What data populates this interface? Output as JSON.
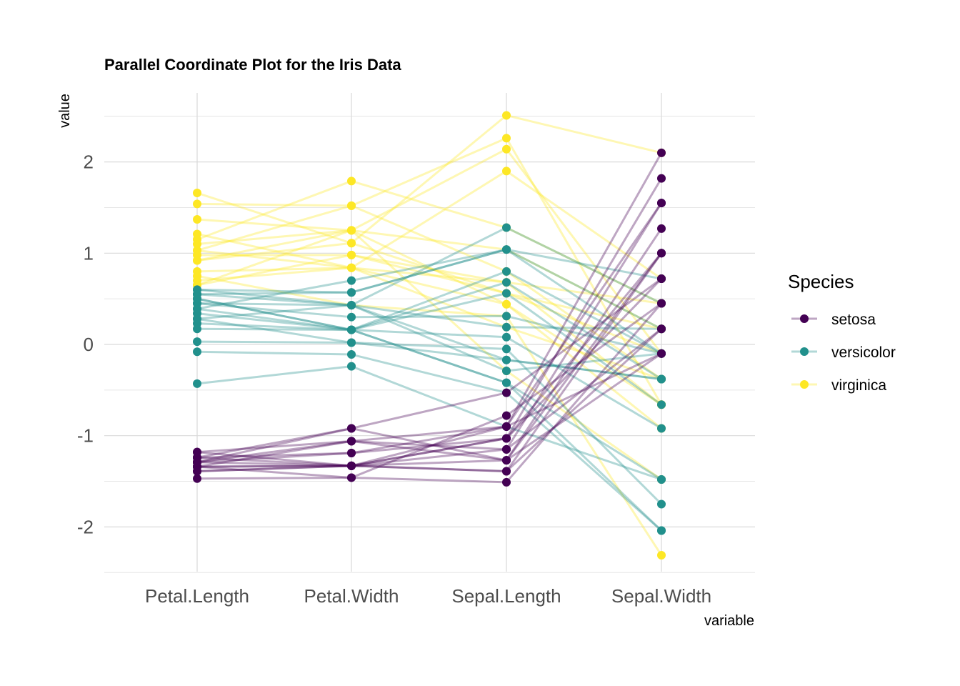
{
  "chart_data": {
    "type": "line",
    "title": "Parallel Coordinate Plot for the Iris Data",
    "xlabel": "variable",
    "ylabel": "value",
    "categories": [
      "Petal.Length",
      "Petal.Width",
      "Sepal.Length",
      "Sepal.Width"
    ],
    "ylim": [
      -2.5,
      2.6
    ],
    "yticks": [
      -2,
      -1,
      0,
      1,
      2
    ],
    "ytick_labels": [
      "-2",
      "-1",
      "0",
      "1",
      "2"
    ],
    "grid": true,
    "legend": {
      "title": "Species",
      "placement": "right",
      "entries": [
        {
          "name": "setosa",
          "color": "#440154"
        },
        {
          "name": "versicolor",
          "color": "#21908C"
        },
        {
          "name": "virginica",
          "color": "#FDE725"
        }
      ]
    },
    "line_opacity": 0.35,
    "series": [
      {
        "name": "setosa",
        "values": [
          -1.18,
          -1.33,
          -0.9,
          2.1
        ]
      },
      {
        "name": "setosa",
        "values": [
          -1.24,
          -1.33,
          -1.03,
          1.82
        ]
      },
      {
        "name": "setosa",
        "values": [
          -1.29,
          -1.06,
          -1.15,
          1.55
        ]
      },
      {
        "name": "setosa",
        "values": [
          -1.34,
          -1.33,
          -1.27,
          1.27
        ]
      },
      {
        "name": "setosa",
        "values": [
          -1.29,
          -1.19,
          -1.03,
          1.0
        ]
      },
      {
        "name": "setosa",
        "values": [
          -1.39,
          -1.33,
          -1.39,
          1.0
        ]
      },
      {
        "name": "setosa",
        "values": [
          -1.24,
          -0.92,
          -0.53,
          0.72
        ]
      },
      {
        "name": "setosa",
        "values": [
          -1.34,
          -1.46,
          -1.51,
          0.45
        ]
      },
      {
        "name": "setosa",
        "values": [
          -1.29,
          -1.33,
          -1.15,
          0.17
        ]
      },
      {
        "name": "setosa",
        "values": [
          -1.47,
          -1.46,
          -0.78,
          0.45
        ]
      },
      {
        "name": "setosa",
        "values": [
          -1.34,
          -1.06,
          -1.27,
          -0.1
        ]
      },
      {
        "name": "setosa",
        "values": [
          -1.39,
          -1.33,
          -1.03,
          0.72
        ]
      },
      {
        "name": "setosa",
        "values": [
          -1.24,
          -1.19,
          -0.9,
          -0.1
        ]
      },
      {
        "name": "setosa",
        "values": [
          -1.34,
          -1.33,
          -1.39,
          0.17
        ]
      },
      {
        "name": "setosa",
        "values": [
          -1.29,
          -0.92,
          -1.27,
          1.0
        ]
      },
      {
        "name": "setosa",
        "values": [
          -1.18,
          -1.06,
          -0.9,
          1.55
        ]
      },
      {
        "name": "versicolor",
        "values": [
          0.6,
          0.43,
          1.28,
          0.45
        ]
      },
      {
        "name": "versicolor",
        "values": [
          0.55,
          0.57,
          1.04,
          0.72
        ]
      },
      {
        "name": "versicolor",
        "values": [
          0.5,
          0.16,
          0.68,
          -0.38
        ]
      },
      {
        "name": "versicolor",
        "values": [
          0.45,
          0.43,
          -0.17,
          -0.38
        ]
      },
      {
        "name": "versicolor",
        "values": [
          0.39,
          0.7,
          1.04,
          -0.1
        ]
      },
      {
        "name": "versicolor",
        "values": [
          0.34,
          0.16,
          0.56,
          -0.66
        ]
      },
      {
        "name": "versicolor",
        "values": [
          0.28,
          0.43,
          -0.29,
          -0.1
        ]
      },
      {
        "name": "versicolor",
        "values": [
          0.23,
          0.16,
          -0.42,
          -1.48
        ]
      },
      {
        "name": "versicolor",
        "values": [
          0.17,
          0.16,
          0.08,
          -0.92
        ]
      },
      {
        "name": "versicolor",
        "values": [
          0.03,
          0.02,
          -0.05,
          -1.75
        ]
      },
      {
        "name": "versicolor",
        "values": [
          -0.08,
          -0.11,
          -0.53,
          -2.04
        ]
      },
      {
        "name": "versicolor",
        "values": [
          -0.43,
          -0.24,
          -0.9,
          -1.48
        ]
      },
      {
        "name": "versicolor",
        "values": [
          0.45,
          0.3,
          0.31,
          -0.1
        ]
      },
      {
        "name": "versicolor",
        "values": [
          0.5,
          0.16,
          -0.42,
          -2.04
        ]
      },
      {
        "name": "versicolor",
        "values": [
          0.28,
          0.02,
          -0.17,
          -0.38
        ]
      },
      {
        "name": "versicolor",
        "values": [
          0.55,
          0.43,
          0.19,
          0.17
        ]
      },
      {
        "name": "versicolor",
        "values": [
          0.39,
          0.16,
          0.8,
          -0.1
        ]
      },
      {
        "name": "versicolor",
        "values": [
          0.6,
          0.57,
          1.04,
          0.17
        ]
      },
      {
        "name": "virginica",
        "values": [
          1.66,
          1.11,
          2.51,
          2.1
        ]
      },
      {
        "name": "virginica",
        "values": [
          1.54,
          1.52,
          2.26,
          -0.66
        ]
      },
      {
        "name": "virginica",
        "values": [
          1.37,
          1.25,
          2.14,
          -0.1
        ]
      },
      {
        "name": "virginica",
        "values": [
          1.21,
          0.84,
          1.9,
          0.72
        ]
      },
      {
        "name": "virginica",
        "values": [
          1.15,
          1.79,
          1.28,
          0.45
        ]
      },
      {
        "name": "virginica",
        "values": [
          1.1,
          1.25,
          1.04,
          0.17
        ]
      },
      {
        "name": "virginica",
        "values": [
          1.03,
          1.52,
          0.8,
          -0.38
        ]
      },
      {
        "name": "virginica",
        "values": [
          0.98,
          0.98,
          0.68,
          -0.66
        ]
      },
      {
        "name": "virginica",
        "values": [
          0.92,
          1.11,
          0.56,
          -0.1
        ]
      },
      {
        "name": "virginica",
        "values": [
          0.8,
          0.84,
          0.44,
          -0.92
        ]
      },
      {
        "name": "virginica",
        "values": [
          0.75,
          0.43,
          0.31,
          -2.31
        ]
      },
      {
        "name": "virginica",
        "values": [
          0.7,
          0.84,
          0.19,
          -0.38
        ]
      },
      {
        "name": "virginica",
        "values": [
          0.65,
          1.25,
          -0.29,
          -1.48
        ]
      },
      {
        "name": "virginica",
        "values": [
          0.65,
          0.98,
          0.56,
          0.17
        ]
      },
      {
        "name": "virginica",
        "values": [
          0.92,
          1.25,
          0.44,
          -0.66
        ]
      },
      {
        "name": "virginica",
        "values": [
          1.03,
          0.84,
          0.68,
          0.45
        ]
      }
    ]
  }
}
